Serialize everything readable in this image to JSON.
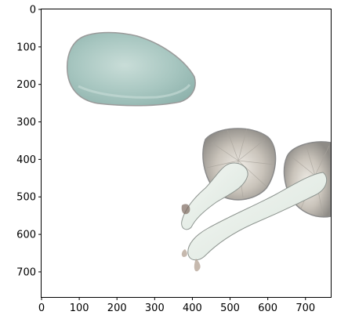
{
  "figure": {
    "x_ticks": [
      "0",
      "100",
      "200",
      "300",
      "400",
      "500",
      "600",
      "700"
    ],
    "y_ticks": [
      "0",
      "100",
      "200",
      "300",
      "400",
      "500",
      "600",
      "700"
    ],
    "xlim": [
      0,
      767
    ],
    "ylim": [
      767,
      0
    ]
  },
  "image": {
    "subject_icon": "mushroom-photo",
    "colors": {
      "cap_teal": "#a9c8c2",
      "cap_light": "#d3e3df",
      "gills": "#c7c1b8",
      "stem": "#e9efe8",
      "outline": "#9a9a9a"
    }
  }
}
